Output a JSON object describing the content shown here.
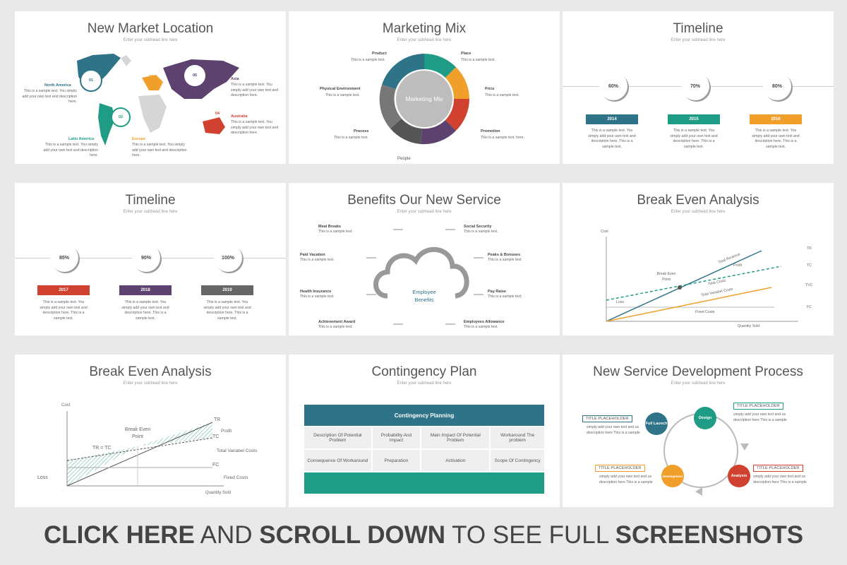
{
  "slides": {
    "s1": {
      "title": "New Market Location",
      "subtitle": "Enter your subhead line here",
      "numbers": [
        "01",
        "02",
        "03",
        "04",
        "05"
      ],
      "regions": [
        {
          "name": "North America",
          "text": "This is a sample text. You simply add your own text and description here."
        },
        {
          "name": "Latin America",
          "text": "This is a sample text. You simply add your own text and description here."
        },
        {
          "name": "Europe",
          "text": "This is a sample text. You simply add your own text and description here."
        },
        {
          "name": "Asia",
          "text": "This is a sample text. You simply add your own text and description here."
        },
        {
          "name": "Australia",
          "text": "This is a sample text. You simply add your own text and description here."
        }
      ]
    },
    "s2": {
      "title": "Marketing Mix",
      "subtitle": "Enter your subhead line here",
      "center": "Marketing Mix",
      "items": [
        {
          "name": "Product",
          "text": "This is a sample text."
        },
        {
          "name": "Place",
          "text": "This is a sample text."
        },
        {
          "name": "Physical Environment",
          "text": "This is a sample text."
        },
        {
          "name": "Price",
          "text": "This is a sample text."
        },
        {
          "name": "Process",
          "text": "This is a sample text."
        },
        {
          "name": "Promotion",
          "text": "This is a sample text. here."
        },
        {
          "name": "People",
          "text": ""
        }
      ]
    },
    "s3": {
      "title": "Timeline",
      "subtitle": "Enter your subhead line here",
      "items": [
        {
          "pct": "60%",
          "year": "2014",
          "color": "#2e7387",
          "text": "This is a sample text. You simply add your own text and description here. This is a sample text."
        },
        {
          "pct": "70%",
          "year": "2015",
          "color": "#1e9c85",
          "text": "This is a sample text. You simply add your own text and description here. This is a sample text."
        },
        {
          "pct": "80%",
          "year": "2016",
          "color": "#f0a02a",
          "text": "This is a sample text. You simply add your own text and description here. This is a sample text."
        }
      ]
    },
    "s4": {
      "title": "Timeline",
      "subtitle": "Enter your subhead line here",
      "items": [
        {
          "pct": "85%",
          "year": "2017",
          "color": "#d0412f",
          "text": "This is a sample text. You simply add your own text and description here. This is a sample text."
        },
        {
          "pct": "90%",
          "year": "2018",
          "color": "#5d4270",
          "text": "This is a sample text. You simply add your own text and description here. This is a sample text."
        },
        {
          "pct": "100%",
          "year": "2019",
          "color": "#666666",
          "text": "This is a sample text. You simply add your own text and description here. This is a sample text."
        }
      ]
    },
    "s5": {
      "title": "Benefits Our New Service",
      "subtitle": "Enter your subhead line here",
      "center": "Employee Benefits",
      "items": [
        {
          "name": "Meal Breaks",
          "text": "This is a sample text."
        },
        {
          "name": "Social Security",
          "text": "This is a sample text."
        },
        {
          "name": "Paid Vacation",
          "text": "This is a sample text."
        },
        {
          "name": "Peaks & Bonuses",
          "text": "This is a sample text."
        },
        {
          "name": "Health Insurance",
          "text": "This is a sample text."
        },
        {
          "name": "Pay Raise",
          "text": "This is a sample text."
        },
        {
          "name": "Achievement Award",
          "text": "This is a sample text."
        },
        {
          "name": "Employees Allowance",
          "text": "This is a sample text."
        }
      ]
    },
    "s6": {
      "title": "Break Even Analysis",
      "subtitle": "Enter your subhead line here",
      "labels": {
        "cost": "Cost",
        "tr": "TR",
        "tc": "TC",
        "tvc": "TVC",
        "fc": "FC",
        "bep": "Break Even Point",
        "loss": "Loss",
        "profit": "Profit",
        "total_revenue": "Total Revenue",
        "total_costs": "Total Costs",
        "tvc_long": "Total Variabel Costs",
        "fixed_costs": "Fixed Costs",
        "qty": "Quantity Sold"
      }
    },
    "s7": {
      "title": "Break Even Analysis",
      "subtitle": "Enter your subhead line here",
      "labels": {
        "cost": "Cost",
        "tr": "TR",
        "tc": "TC",
        "fc": "FC",
        "bep": "Break Even Point",
        "trtc": "TR = TC",
        "loss": "Loss",
        "profit": "Profit",
        "tvc_long": "Total Variabel Costs",
        "fixed_costs": "Fixed Costs",
        "qty": "Quantity Sold"
      }
    },
    "s8": {
      "title": "Contingency Plan",
      "subtitle": "Enter your subhead line here",
      "header": "Contingency Planning",
      "rows": [
        [
          "Description Of Potential Problem",
          "Probability And Impact",
          "Main Impact Of Potential Problem",
          "Workaround The problem"
        ],
        [
          "Consequence Of Workaround",
          "Preparation",
          "Activation",
          "Scope Of Contingency"
        ]
      ]
    },
    "s9": {
      "title": "New Service Development Process",
      "subtitle": "Enter your subhead line here",
      "steps": [
        {
          "label": "Full Launch",
          "color": "#2e7387"
        },
        {
          "label": "Design",
          "color": "#1e9c85"
        },
        {
          "label": "Analysis",
          "color": "#d0412f"
        },
        {
          "label": "Development",
          "color": "#f0a02a"
        }
      ],
      "placeholders": [
        {
          "title": "TITLE PLACEHOLDER",
          "text": "simply add your own text and us description here This is a sample"
        },
        {
          "title": "TITLE PLACEHOLDER",
          "text": "simply add your own text and us description here This is a sample"
        },
        {
          "title": "TITLE PLACEHOLDER",
          "text": "simply add your own text and us description here This is a sample"
        },
        {
          "title": "TITLE PLACEHOLDER",
          "text": "simply add your own text and us description here This is a sample"
        }
      ]
    }
  },
  "footer": {
    "p1": "CLICK HERE",
    "p2": " AND ",
    "p3": "SCROLL DOWN",
    "p4": " TO SEE FULL ",
    "p5": "SCREENSHOTS"
  }
}
